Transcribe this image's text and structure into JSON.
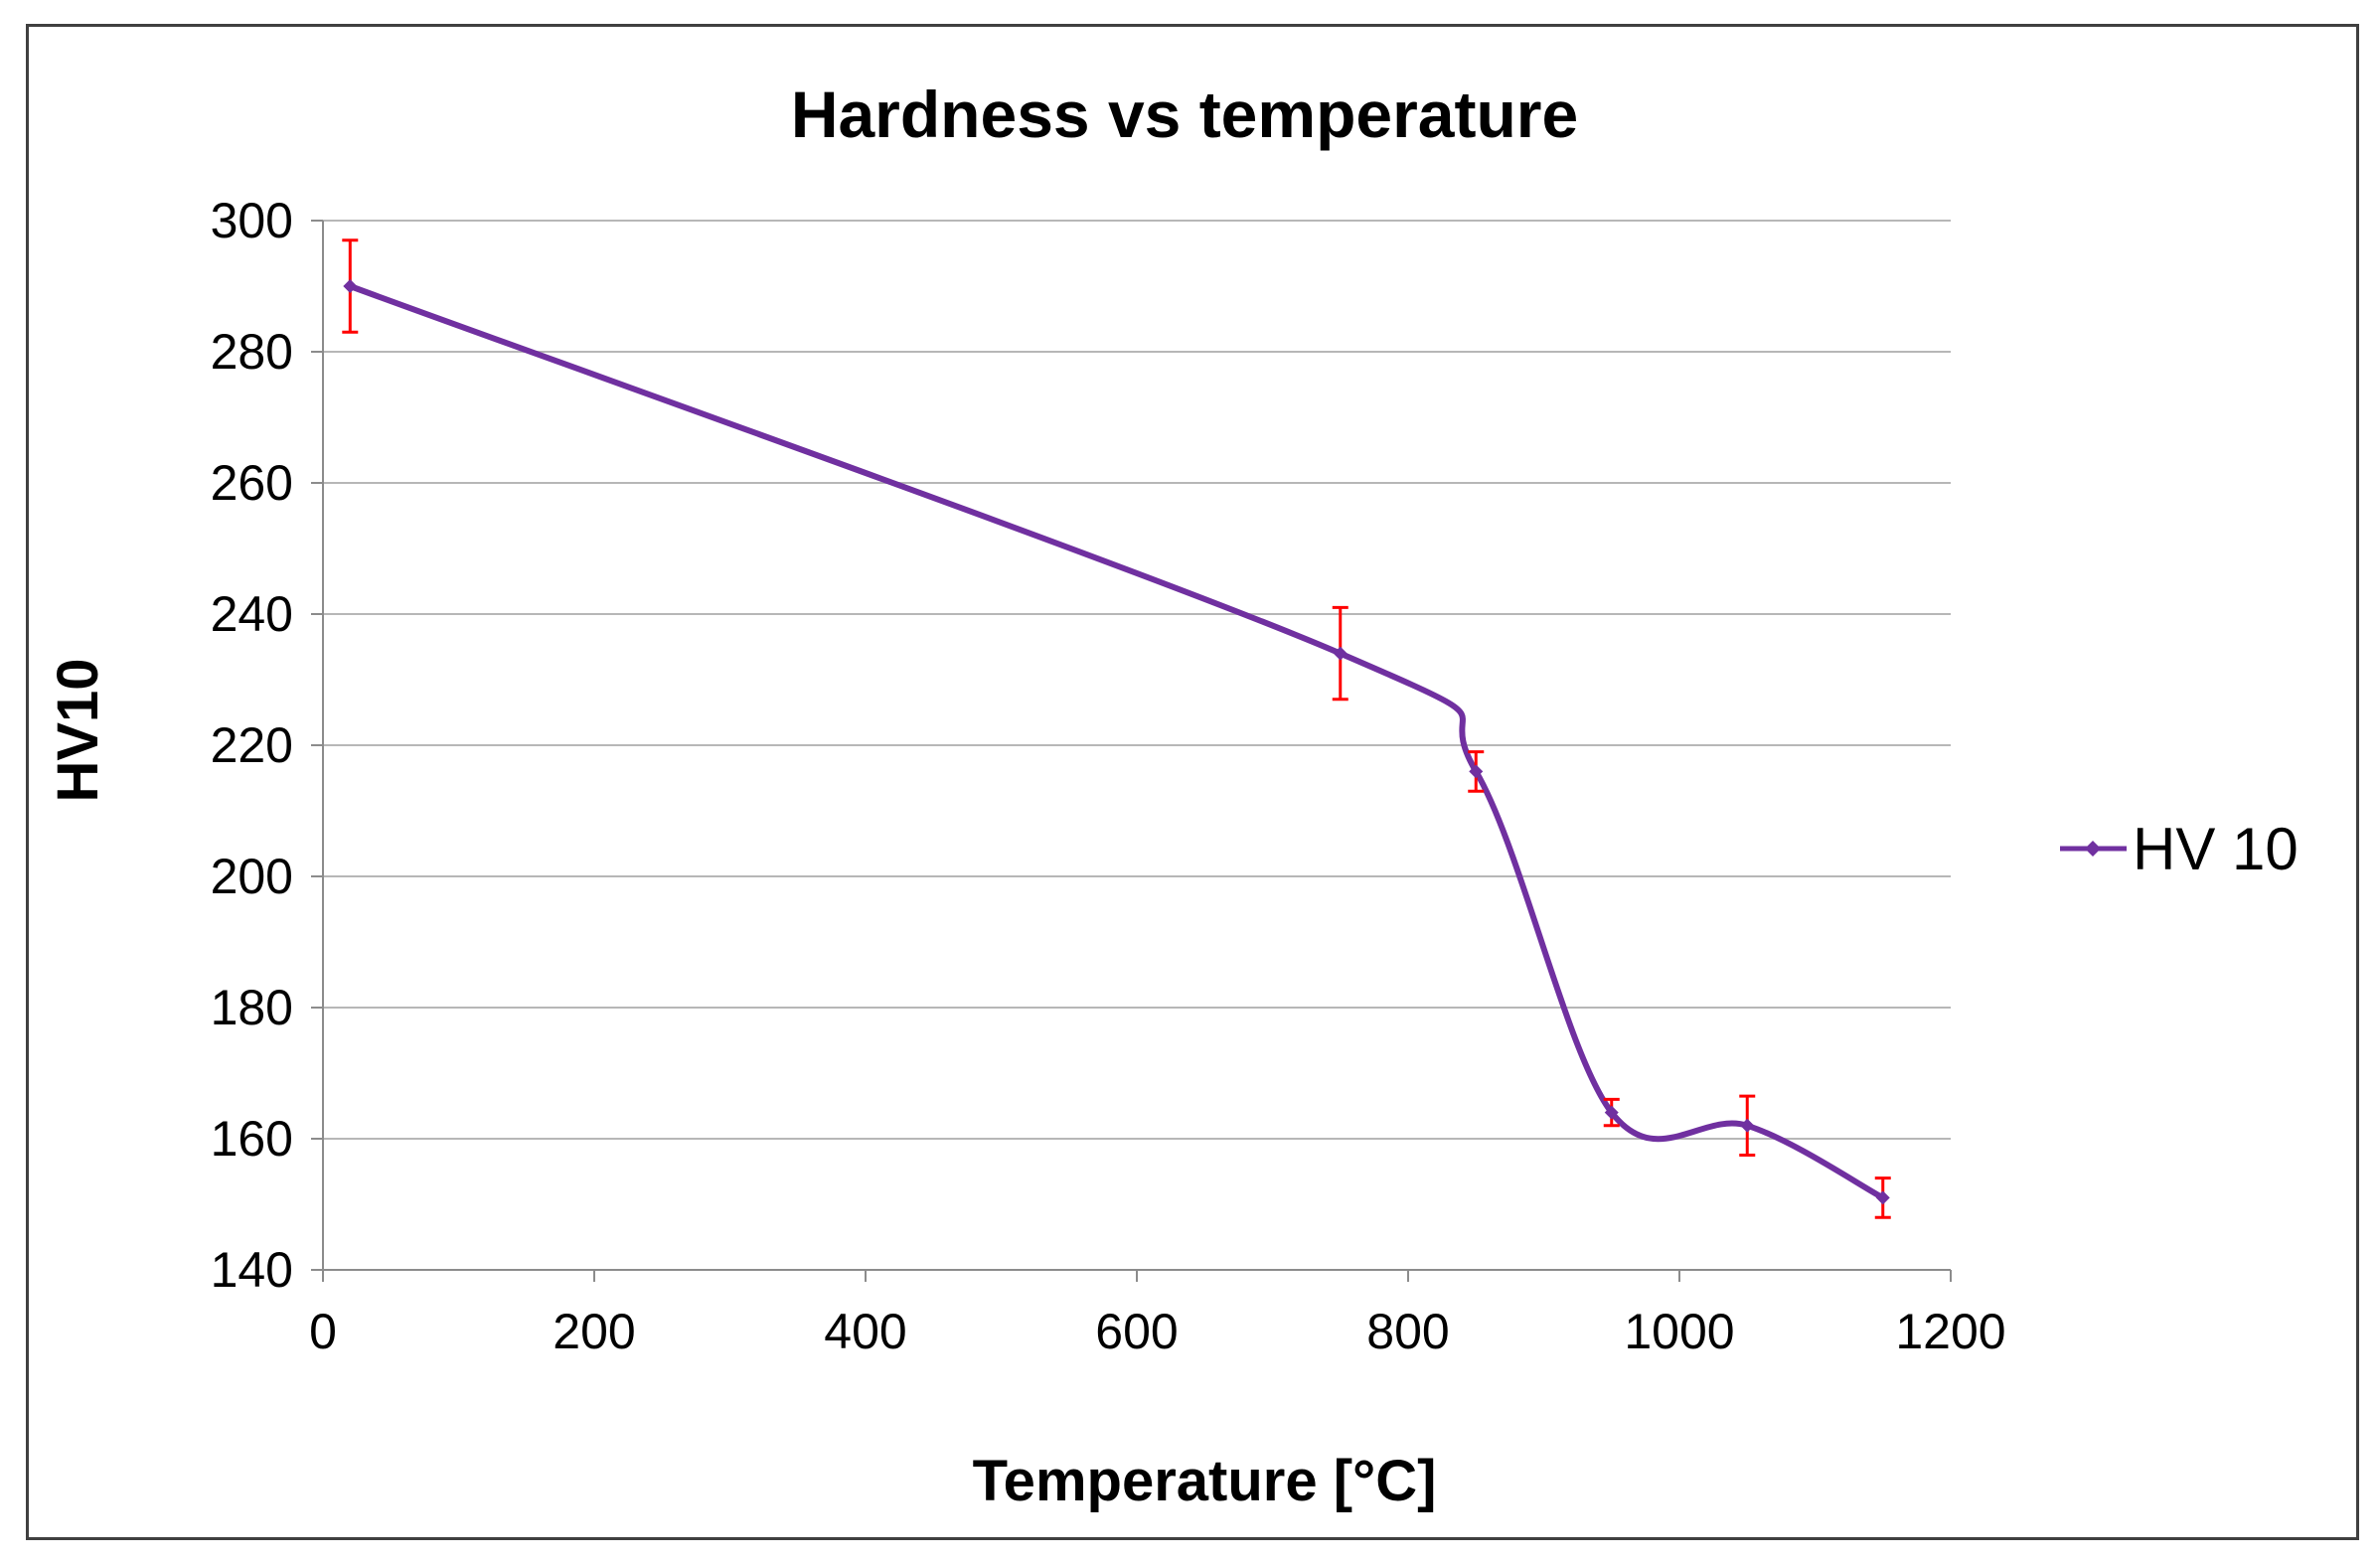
{
  "chart_data": {
    "type": "line",
    "title": "Hardness vs temperature",
    "xlabel": "Temperature [°C]",
    "ylabel": "HV10",
    "xlim": [
      0,
      1200
    ],
    "ylim": [
      140,
      300
    ],
    "x_ticks": [
      0,
      200,
      400,
      600,
      800,
      1000,
      1200
    ],
    "y_ticks": [
      140,
      160,
      180,
      200,
      220,
      240,
      260,
      280,
      300
    ],
    "grid": "horizontal",
    "smooth": true,
    "legend_position": "right",
    "series": [
      {
        "name": "HV 10",
        "color": "#7030A0",
        "error_color": "#FF0000",
        "x": [
          20,
          750,
          850,
          950,
          1050,
          1150
        ],
        "values": [
          290,
          234,
          216,
          164,
          162,
          151
        ],
        "errors": [
          7,
          7,
          3,
          2,
          4.5,
          3
        ]
      }
    ]
  }
}
